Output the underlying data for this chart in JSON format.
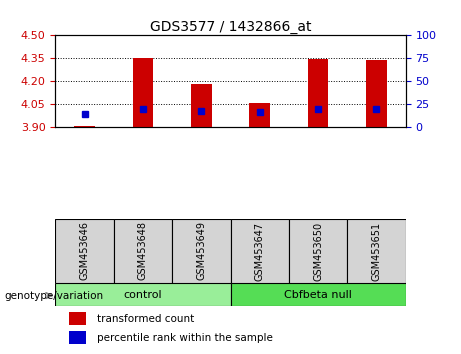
{
  "title": "GDS3577 / 1432866_at",
  "samples": [
    "GSM453646",
    "GSM453648",
    "GSM453649",
    "GSM453647",
    "GSM453650",
    "GSM453651"
  ],
  "groups": [
    "control",
    "control",
    "control",
    "Cbfbeta null",
    "Cbfbeta null",
    "Cbfbeta null"
  ],
  "transformed_count": [
    3.91,
    4.35,
    4.18,
    4.06,
    4.345,
    4.34
  ],
  "percentile_rank": [
    15,
    20,
    18,
    17,
    20,
    20
  ],
  "ylim_left": [
    3.9,
    4.5
  ],
  "ylim_right": [
    0,
    100
  ],
  "yticks_left": [
    3.9,
    4.05,
    4.2,
    4.35,
    4.5
  ],
  "yticks_right": [
    0,
    25,
    50,
    75,
    100
  ],
  "bar_color": "#cc0000",
  "dot_color": "#0000cc",
  "bar_bottom": 3.9,
  "group_colors": {
    "control": "#99ee99",
    "Cbfbeta null": "#55dd55"
  },
  "group_label": "genotype/variation",
  "legend_items": [
    "transformed count",
    "percentile rank within the sample"
  ],
  "background_color": "#ffffff",
  "plot_bg": "#ffffff",
  "left_tick_color": "#cc0000",
  "right_tick_color": "#0000cc",
  "sample_box_color": "#d4d4d4",
  "bar_width": 0.35,
  "title_fontsize": 10,
  "tick_fontsize": 8,
  "label_fontsize": 8,
  "legend_fontsize": 7.5
}
